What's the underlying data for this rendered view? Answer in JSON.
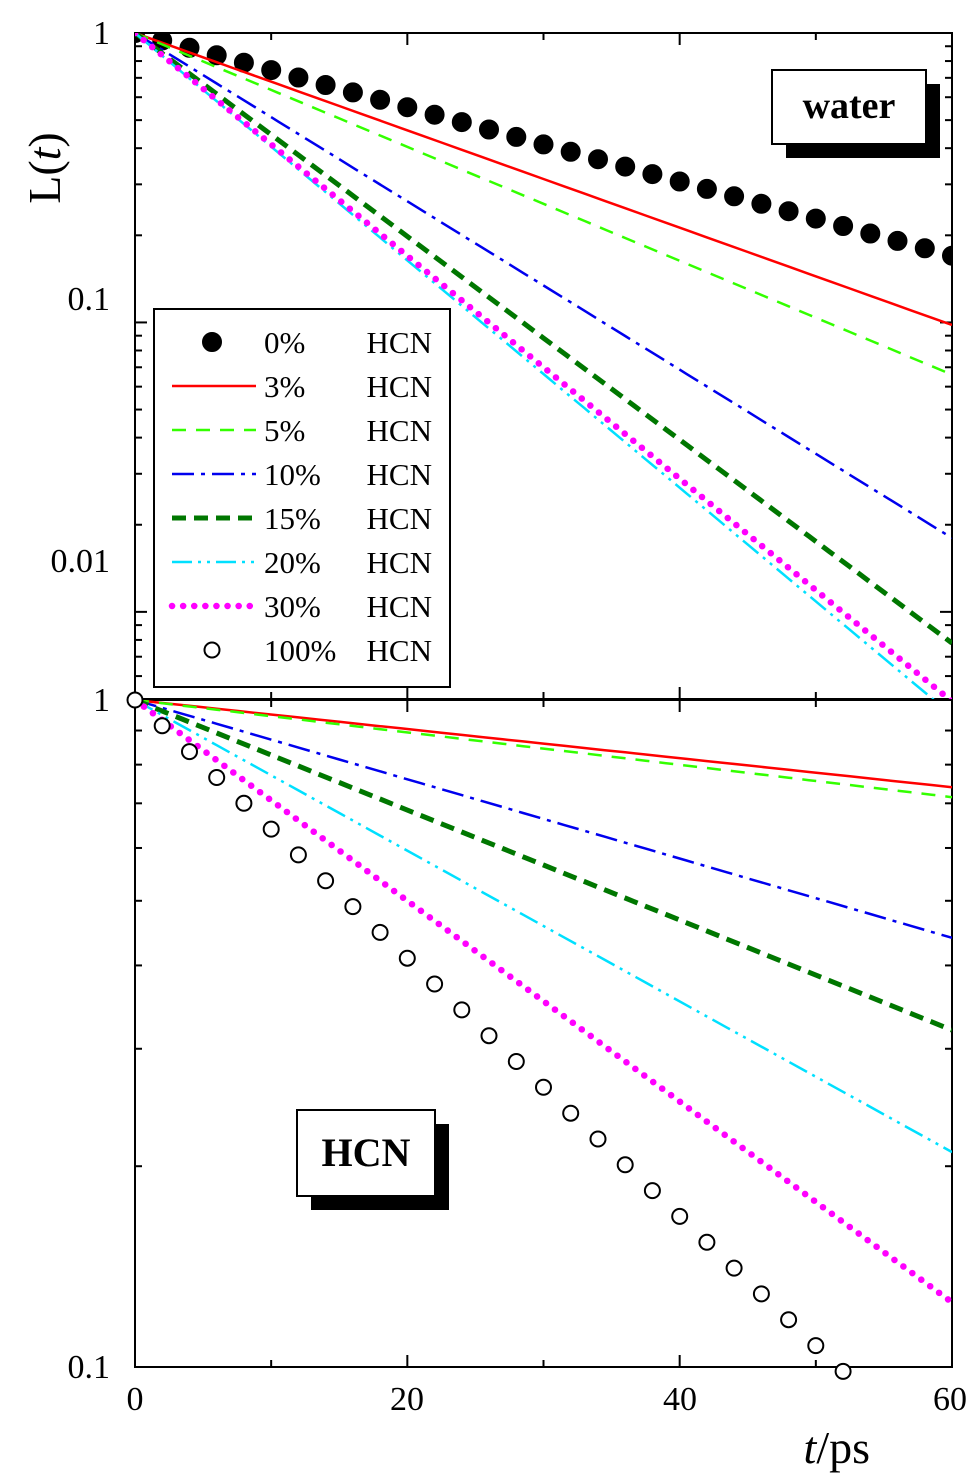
{
  "figure": {
    "ylabel_prefix": "L(",
    "ylabel_var": "t",
    "ylabel_suffix": ")",
    "xlabel_var": "t",
    "xlabel_unit": "/ps",
    "x_ticks": [
      "0",
      "20",
      "40",
      "60"
    ],
    "top_y_ticks": [
      "1",
      "0.1",
      "0.01"
    ],
    "bottom_y_ticks": [
      "1",
      "0.1"
    ],
    "top_panel_label": "water",
    "bottom_panel_label": "HCN",
    "legend_unit": "HCN"
  },
  "chart_data": [
    {
      "type": "line",
      "panel": "water",
      "title": "",
      "xlabel": "t/ps",
      "ylabel": "L(t)",
      "xlim": [
        0,
        60
      ],
      "ylim": [
        0.005,
        1
      ],
      "yscale": "log",
      "legend_position": "center-left",
      "series": [
        {
          "name": "0%",
          "label": "HCN",
          "style": "filled-circle",
          "color": "#000000",
          "x": [
            0,
            60
          ],
          "y": [
            1.0,
            0.17
          ]
        },
        {
          "name": "3%",
          "label": "HCN",
          "style": "solid",
          "color": "#ff0000",
          "x": [
            0,
            60
          ],
          "y": [
            1.0,
            0.098
          ]
        },
        {
          "name": "5%",
          "label": "HCN",
          "style": "dashed",
          "color": "#33ff00",
          "x": [
            0,
            60
          ],
          "y": [
            1.0,
            0.066
          ]
        },
        {
          "name": "10%",
          "label": "HCN",
          "style": "dash-dot",
          "color": "#0000ee",
          "x": [
            0,
            60
          ],
          "y": [
            1.0,
            0.018
          ]
        },
        {
          "name": "15%",
          "label": "HCN",
          "style": "thick-dashed",
          "color": "#007700",
          "x": [
            0,
            60
          ],
          "y": [
            1.0,
            0.0078
          ]
        },
        {
          "name": "20%",
          "label": "HCN",
          "style": "dash-dot-dot",
          "color": "#00e0ff",
          "x": [
            0,
            60
          ],
          "y": [
            1.0,
            0.0044
          ]
        },
        {
          "name": "30%",
          "label": "HCN",
          "style": "dotted",
          "color": "#ff00ff",
          "x": [
            0,
            60
          ],
          "y": [
            1.0,
            0.0049
          ]
        },
        {
          "name": "100%",
          "label": "HCN",
          "style": "open-circle",
          "color": "#000000",
          "x": [],
          "y": []
        }
      ]
    },
    {
      "type": "line",
      "panel": "HCN",
      "title": "",
      "xlabel": "t/ps",
      "ylabel": "L(t)",
      "xlim": [
        0,
        60
      ],
      "ylim": [
        0.1,
        1
      ],
      "yscale": "log",
      "series": [
        {
          "name": "3%",
          "style": "solid",
          "color": "#ff0000",
          "x": [
            0,
            60
          ],
          "y": [
            1.0,
            0.74
          ]
        },
        {
          "name": "5%",
          "style": "dashed",
          "color": "#33ff00",
          "x": [
            0,
            60
          ],
          "y": [
            1.0,
            0.715
          ]
        },
        {
          "name": "10%",
          "style": "dash-dot",
          "color": "#0000ee",
          "x": [
            0,
            60
          ],
          "y": [
            1.0,
            0.44
          ]
        },
        {
          "name": "15%",
          "style": "thick-dashed",
          "color": "#007700",
          "x": [
            0,
            60
          ],
          "y": [
            1.0,
            0.32
          ]
        },
        {
          "name": "20%",
          "style": "dash-dot-dot",
          "color": "#00e0ff",
          "x": [
            0,
            60
          ],
          "y": [
            1.0,
            0.21
          ]
        },
        {
          "name": "30%",
          "style": "dotted",
          "color": "#ff00ff",
          "x": [
            0,
            60
          ],
          "y": [
            1.0,
            0.125
          ]
        },
        {
          "name": "100%",
          "style": "open-circle",
          "color": "#000000",
          "x": [
            0,
            52
          ],
          "y": [
            1.0,
            0.0985
          ]
        }
      ]
    }
  ]
}
